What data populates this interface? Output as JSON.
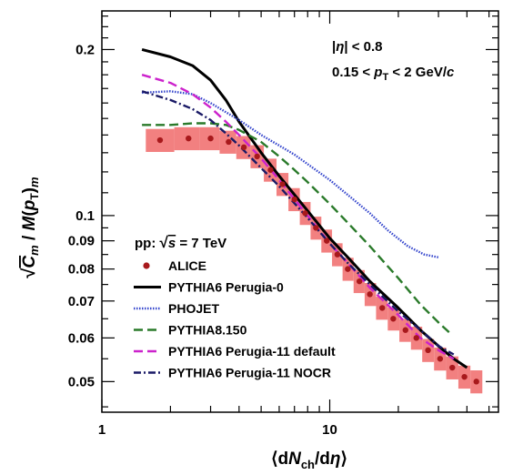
{
  "chart_data": {
    "type": "line",
    "xlabel": "⟨dN_ch/dη⟩",
    "ylabel": "√C_m / M(p_T)_m",
    "xlim": [
      1,
      55
    ],
    "ylim": [
      0.044,
      0.235
    ],
    "xscale": "log",
    "yscale": "log",
    "x_ticks": [
      {
        "value": 1,
        "label": "1"
      },
      {
        "value": 10,
        "label": "10"
      }
    ],
    "y_ticks": [
      {
        "value": 0.2,
        "label": "0.2"
      },
      {
        "value": 0.1,
        "label": "0.1"
      },
      {
        "value": 0.09,
        "label": "0.09"
      },
      {
        "value": 0.08,
        "label": "0.08"
      },
      {
        "value": 0.07,
        "label": "0.07"
      },
      {
        "value": 0.06,
        "label": "0.06"
      },
      {
        "value": 0.05,
        "label": "0.05"
      }
    ],
    "grid": false,
    "legend_position": "bottom-left",
    "annotations": {
      "eta_cut": "|η| < 0.8",
      "pt_cut": "0.15 < p_T < 2 GeV/c",
      "system": "pp:  √s = 7 TeV"
    },
    "series": [
      {
        "name": "ALICE",
        "style": "markers",
        "color": "#a8191c",
        "band_color": "#f28080",
        "x": [
          1.8,
          2.4,
          3.0,
          3.6,
          4.2,
          4.8,
          5.5,
          6.2,
          7.0,
          7.8,
          8.7,
          9.7,
          10.8,
          12.0,
          13.5,
          15.0,
          17.0,
          19.0,
          21.5,
          24.0,
          27.0,
          30.5,
          34.5,
          39.0,
          44.0
        ],
        "y": [
          0.137,
          0.138,
          0.138,
          0.136,
          0.133,
          0.128,
          0.121,
          0.114,
          0.107,
          0.101,
          0.095,
          0.09,
          0.085,
          0.08,
          0.076,
          0.072,
          0.068,
          0.065,
          0.062,
          0.06,
          0.057,
          0.055,
          0.053,
          0.051,
          0.05
        ],
        "band_halfwidth": 0.048
      },
      {
        "name": "PYTHIA6 Perugia-0",
        "style": "solid",
        "color": "#000000",
        "x": [
          1.5,
          2.0,
          2.5,
          3.0,
          3.5,
          4.0,
          5.0,
          6.0,
          8.0,
          10.0,
          12.0,
          15.0,
          20.0,
          25.0,
          30.0,
          35.0,
          40.0
        ],
        "y": [
          0.2,
          0.194,
          0.187,
          0.176,
          0.162,
          0.148,
          0.13,
          0.118,
          0.102,
          0.091,
          0.084,
          0.076,
          0.068,
          0.062,
          0.058,
          0.055,
          0.053
        ]
      },
      {
        "name": "PHOJET",
        "style": "dotted",
        "color": "#3344cc",
        "x": [
          1.5,
          2.0,
          2.5,
          3.0,
          4.0,
          5.0,
          6.0,
          7.0,
          8.0,
          10.0,
          12.0,
          15.0,
          18.0,
          22.0,
          26.0,
          30.0
        ],
        "y": [
          0.167,
          0.168,
          0.166,
          0.16,
          0.149,
          0.14,
          0.134,
          0.129,
          0.124,
          0.116,
          0.109,
          0.101,
          0.094,
          0.088,
          0.085,
          0.084
        ]
      },
      {
        "name": "PYTHIA8.150",
        "style": "dashed",
        "color": "#2a7a2a",
        "x": [
          1.5,
          2.0,
          2.5,
          3.0,
          3.5,
          4.0,
          5.0,
          6.0,
          7.0,
          8.0,
          10.0,
          12.0,
          15.0,
          20.0,
          25.0,
          30.0,
          34.0
        ],
        "y": [
          0.146,
          0.146,
          0.147,
          0.147,
          0.146,
          0.143,
          0.136,
          0.128,
          0.121,
          0.115,
          0.105,
          0.097,
          0.088,
          0.077,
          0.069,
          0.064,
          0.061
        ]
      },
      {
        "name": "PYTHIA6 Perugia-11 default",
        "style": "dashed",
        "color": "#cc22cc",
        "x": [
          1.5,
          2.0,
          2.5,
          3.0,
          3.5,
          4.0,
          5.0,
          6.0,
          8.0,
          10.0,
          12.0,
          15.0,
          20.0,
          25.0,
          30.0,
          35.0
        ],
        "y": [
          0.18,
          0.174,
          0.166,
          0.157,
          0.148,
          0.14,
          0.127,
          0.116,
          0.1,
          0.089,
          0.082,
          0.074,
          0.066,
          0.06,
          0.057,
          0.055
        ]
      },
      {
        "name": "PYTHIA6 Perugia-11 NOCR",
        "style": "dashdot",
        "color": "#1a1a66",
        "x": [
          1.5,
          2.0,
          2.5,
          3.0,
          3.5,
          4.0,
          5.0,
          6.0,
          8.0,
          10.0,
          12.0,
          15.0,
          20.0,
          25.0,
          30.0,
          35.0
        ],
        "y": [
          0.168,
          0.162,
          0.156,
          0.149,
          0.141,
          0.134,
          0.122,
          0.113,
          0.099,
          0.089,
          0.082,
          0.075,
          0.067,
          0.062,
          0.058,
          0.056
        ]
      }
    ]
  }
}
